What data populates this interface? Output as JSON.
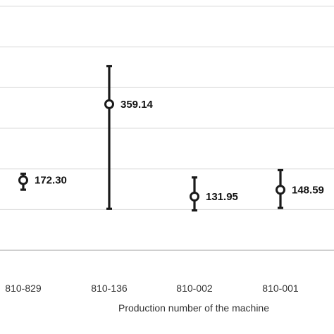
{
  "chart_data": {
    "type": "scatter",
    "title": "",
    "xlabel": "Production number of the machine",
    "ylabel": "",
    "categories": [
      "810-829",
      "810-136",
      "810-002",
      "810-001"
    ],
    "series": [
      {
        "values": [
          172.3,
          359.14,
          131.95,
          148.59
        ],
        "labels": [
          "172.30",
          "359.14",
          "131.95",
          "148.59"
        ],
        "error_low": [
          149,
          102,
          98,
          104
        ],
        "error_high": [
          188,
          453,
          179,
          197
        ]
      }
    ],
    "ylim": [
      -50,
      650
    ],
    "grid": true,
    "marker": "open-circle",
    "colors": {
      "marker": "#1a1a1a",
      "grid": "#d9d9d9"
    }
  }
}
